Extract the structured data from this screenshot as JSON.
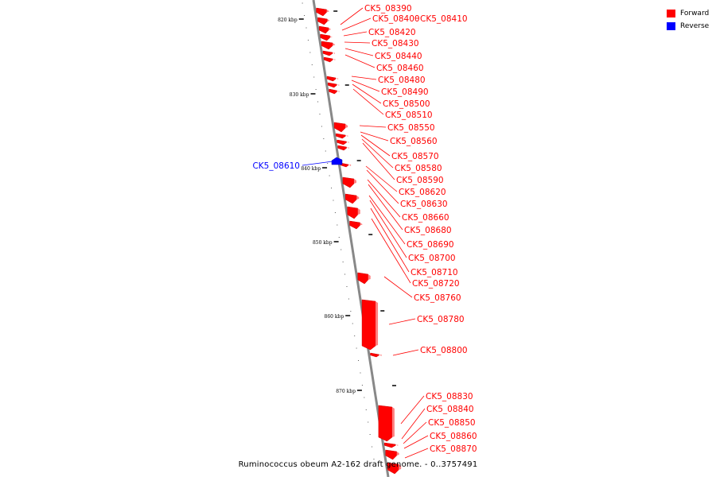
{
  "legend": {
    "forward_label": "Forward",
    "reverse_label": "Reverse",
    "forward_color": "#ff0000",
    "reverse_color": "#0000ff"
  },
  "caption": "Ruminococcus obeum A2-162 draft genome. - 0..3757491",
  "axis": {
    "unit": "kbp",
    "ticks": [
      {
        "label": "820 kbp"
      },
      {
        "label": "830 kbp"
      },
      {
        "label": "840 kbp"
      },
      {
        "label": "850 kbp"
      },
      {
        "label": "860 kbp"
      },
      {
        "label": "870 kbp"
      }
    ]
  },
  "genes": [
    {
      "label": "CK5_08390",
      "strand": "forward"
    },
    {
      "label": "CK5_08400",
      "strand": "forward"
    },
    {
      "label": "CK5_08410",
      "strand": "forward"
    },
    {
      "label": "CK5_08420",
      "strand": "forward"
    },
    {
      "label": "CK5_08430",
      "strand": "forward"
    },
    {
      "label": "CK5_08440",
      "strand": "forward"
    },
    {
      "label": "CK5_08460",
      "strand": "forward"
    },
    {
      "label": "CK5_08480",
      "strand": "forward"
    },
    {
      "label": "CK5_08490",
      "strand": "forward"
    },
    {
      "label": "CK5_08500",
      "strand": "forward"
    },
    {
      "label": "CK5_08510",
      "strand": "forward"
    },
    {
      "label": "CK5_08550",
      "strand": "forward"
    },
    {
      "label": "CK5_08560",
      "strand": "forward"
    },
    {
      "label": "CK5_08570",
      "strand": "forward"
    },
    {
      "label": "CK5_08580",
      "strand": "forward"
    },
    {
      "label": "CK5_08590",
      "strand": "forward"
    },
    {
      "label": "CK5_08610",
      "strand": "reverse"
    },
    {
      "label": "CK5_08620",
      "strand": "forward"
    },
    {
      "label": "CK5_08630",
      "strand": "forward"
    },
    {
      "label": "CK5_08660",
      "strand": "forward"
    },
    {
      "label": "CK5_08680",
      "strand": "forward"
    },
    {
      "label": "CK5_08690",
      "strand": "forward"
    },
    {
      "label": "CK5_08700",
      "strand": "forward"
    },
    {
      "label": "CK5_08710",
      "strand": "forward"
    },
    {
      "label": "CK5_08720",
      "strand": "forward"
    },
    {
      "label": "CK5_08760",
      "strand": "forward"
    },
    {
      "label": "CK5_08780",
      "strand": "forward"
    },
    {
      "label": "CK5_08800",
      "strand": "forward"
    },
    {
      "label": "CK5_08830",
      "strand": "forward"
    },
    {
      "label": "CK5_08840",
      "strand": "forward"
    },
    {
      "label": "CK5_08850",
      "strand": "forward"
    },
    {
      "label": "CK5_08860",
      "strand": "forward"
    },
    {
      "label": "CK5_08870",
      "strand": "forward"
    }
  ]
}
